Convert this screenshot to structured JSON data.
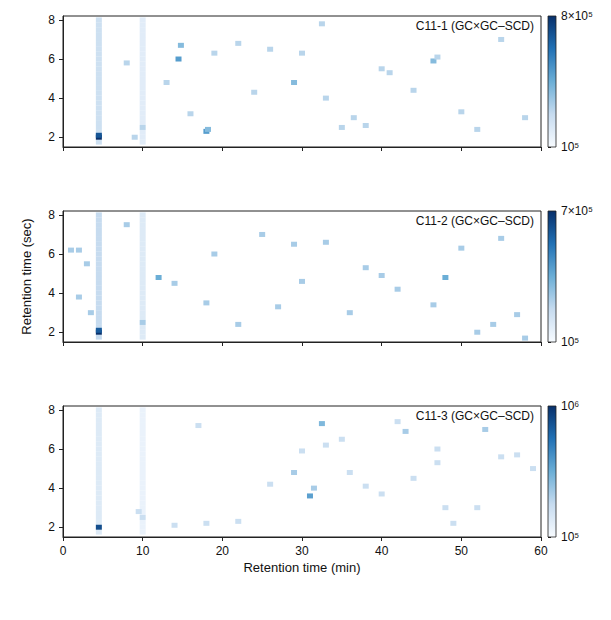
{
  "chart_data": [
    {
      "type": "heatmap",
      "title": "C11-1 (GC×GC–SCD)",
      "xlim": [
        0,
        60
      ],
      "xticks": [
        0,
        10,
        20,
        30,
        40,
        50,
        60
      ],
      "ylim": [
        1.5,
        8.2
      ],
      "yticks": [
        2,
        4,
        6,
        8
      ],
      "tick_labels": "y",
      "colorbar": {
        "range": [
          100000,
          800000
        ],
        "ticks": [
          {
            "value": 100000,
            "label": "10⁵"
          },
          {
            "value": 800000,
            "label": "8×10⁵"
          }
        ]
      },
      "cells": [
        [
          4.5,
          1.75,
          250000
        ],
        [
          4.5,
          2.25,
          250000
        ],
        [
          4.5,
          2.5,
          250000
        ],
        [
          4.5,
          2.75,
          250000
        ],
        [
          4.5,
          3,
          250000
        ],
        [
          4.5,
          3.25,
          250000
        ],
        [
          4.5,
          3.5,
          250000
        ],
        [
          4.5,
          3.75,
          250000
        ],
        [
          4.5,
          4,
          250000
        ],
        [
          4.5,
          4.25,
          250000
        ],
        [
          4.5,
          4.5,
          250000
        ],
        [
          4.5,
          4.75,
          250000
        ],
        [
          4.5,
          5,
          250000
        ],
        [
          4.5,
          5.25,
          250000
        ],
        [
          4.5,
          5.5,
          250000
        ],
        [
          4.5,
          5.75,
          250000
        ],
        [
          4.5,
          6,
          250000
        ],
        [
          4.5,
          6.25,
          250000
        ],
        [
          4.5,
          6.5,
          250000
        ],
        [
          4.5,
          6.75,
          250000
        ],
        [
          4.5,
          7,
          250000
        ],
        [
          4.5,
          7.25,
          250000
        ],
        [
          4.5,
          7.5,
          250000
        ],
        [
          4.5,
          7.75,
          250000
        ],
        [
          4.5,
          8,
          250000
        ],
        [
          10,
          1.75,
          180000
        ],
        [
          10,
          2,
          180000
        ],
        [
          10,
          2.25,
          180000
        ],
        [
          10,
          2.75,
          180000
        ],
        [
          10,
          3,
          180000
        ],
        [
          10,
          3.25,
          180000
        ],
        [
          10,
          3.5,
          180000
        ],
        [
          10,
          3.75,
          180000
        ],
        [
          10,
          4,
          180000
        ],
        [
          10,
          4.25,
          180000
        ],
        [
          10,
          4.5,
          180000
        ],
        [
          10,
          4.75,
          180000
        ],
        [
          10,
          5,
          180000
        ],
        [
          10,
          5.25,
          180000
        ],
        [
          10,
          5.5,
          180000
        ],
        [
          10,
          5.75,
          180000
        ],
        [
          10,
          6,
          180000
        ],
        [
          10,
          6.25,
          180000
        ],
        [
          10,
          6.5,
          180000
        ],
        [
          10,
          6.75,
          180000
        ],
        [
          10,
          7,
          180000
        ],
        [
          10,
          7.25,
          180000
        ],
        [
          10,
          7.5,
          180000
        ],
        [
          10,
          7.75,
          180000
        ],
        [
          10,
          8,
          180000
        ],
        [
          4.5,
          2.0,
          800000
        ],
        [
          4.5,
          2.1,
          700000
        ],
        [
          10,
          2.5,
          300000
        ],
        [
          14.5,
          6.0,
          500000
        ],
        [
          14.8,
          6.7,
          400000
        ],
        [
          18,
          2.3,
          500000
        ],
        [
          18.2,
          2.4,
          400000
        ],
        [
          19,
          6.3,
          300000
        ],
        [
          22,
          6.8,
          300000
        ],
        [
          24,
          4.3,
          300000
        ],
        [
          29,
          4.8,
          400000
        ],
        [
          30,
          6.3,
          300000
        ],
        [
          32.5,
          7.8,
          300000
        ],
        [
          33,
          4.0,
          300000
        ],
        [
          35,
          2.5,
          300000
        ],
        [
          36.5,
          3.0,
          300000
        ],
        [
          38,
          2.6,
          300000
        ],
        [
          40,
          5.5,
          300000
        ],
        [
          41,
          5.3,
          300000
        ],
        [
          44,
          4.4,
          300000
        ],
        [
          46.5,
          5.9,
          400000
        ],
        [
          47,
          6.1,
          300000
        ],
        [
          52,
          2.4,
          300000
        ],
        [
          55,
          7.0,
          300000
        ],
        [
          58,
          3.0,
          300000
        ],
        [
          8,
          5.8,
          300000
        ],
        [
          9,
          2.0,
          300000
        ],
        [
          13,
          4.8,
          300000
        ],
        [
          16,
          3.2,
          300000
        ],
        [
          26,
          6.5,
          300000
        ],
        [
          50,
          3.3,
          300000
        ]
      ]
    },
    {
      "type": "heatmap",
      "title": "C11-2 (GC×GC–SCD)",
      "ylabel": "Retention time (sec)",
      "xlim": [
        0,
        60
      ],
      "xticks": [
        0,
        10,
        20,
        30,
        40,
        50,
        60
      ],
      "ylim": [
        1.5,
        8.2
      ],
      "yticks": [
        2,
        4,
        6,
        8
      ],
      "tick_labels": "y",
      "colorbar": {
        "range": [
          100000,
          700000
        ],
        "ticks": [
          {
            "value": 100000,
            "label": "10⁵"
          },
          {
            "value": 700000,
            "label": "7×10⁵"
          }
        ]
      },
      "cells": [
        [
          4.5,
          1.75,
          250000
        ],
        [
          4.5,
          2.25,
          250000
        ],
        [
          4.5,
          2.5,
          250000
        ],
        [
          4.5,
          2.75,
          250000
        ],
        [
          4.5,
          3,
          250000
        ],
        [
          4.5,
          3.25,
          250000
        ],
        [
          4.5,
          3.5,
          250000
        ],
        [
          4.5,
          3.75,
          250000
        ],
        [
          4.5,
          4,
          250000
        ],
        [
          4.5,
          4.25,
          250000
        ],
        [
          4.5,
          4.5,
          250000
        ],
        [
          4.5,
          4.75,
          250000
        ],
        [
          4.5,
          5,
          250000
        ],
        [
          4.5,
          5.25,
          250000
        ],
        [
          4.5,
          5.5,
          250000
        ],
        [
          4.5,
          5.75,
          250000
        ],
        [
          4.5,
          6,
          250000
        ],
        [
          4.5,
          6.25,
          250000
        ],
        [
          4.5,
          6.5,
          250000
        ],
        [
          4.5,
          6.75,
          250000
        ],
        [
          4.5,
          7,
          250000
        ],
        [
          4.5,
          7.25,
          250000
        ],
        [
          4.5,
          7.5,
          250000
        ],
        [
          4.5,
          7.75,
          250000
        ],
        [
          4.5,
          8,
          250000
        ],
        [
          10,
          1.75,
          180000
        ],
        [
          10,
          2,
          180000
        ],
        [
          10,
          2.25,
          180000
        ],
        [
          10,
          2.75,
          180000
        ],
        [
          10,
          3,
          180000
        ],
        [
          10,
          3.25,
          180000
        ],
        [
          10,
          3.5,
          180000
        ],
        [
          10,
          3.75,
          180000
        ],
        [
          10,
          4,
          180000
        ],
        [
          10,
          4.25,
          180000
        ],
        [
          10,
          4.5,
          180000
        ],
        [
          10,
          4.75,
          180000
        ],
        [
          10,
          5,
          180000
        ],
        [
          10,
          5.25,
          180000
        ],
        [
          10,
          5.5,
          180000
        ],
        [
          10,
          5.75,
          180000
        ],
        [
          10,
          6,
          180000
        ],
        [
          10,
          6.25,
          180000
        ],
        [
          10,
          6.5,
          180000
        ],
        [
          10,
          6.75,
          180000
        ],
        [
          10,
          7,
          180000
        ],
        [
          10,
          7.25,
          180000
        ],
        [
          10,
          7.5,
          180000
        ],
        [
          10,
          7.75,
          180000
        ],
        [
          10,
          8,
          180000
        ],
        [
          4.5,
          2.0,
          700000
        ],
        [
          4.5,
          2.1,
          600000
        ],
        [
          10,
          2.5,
          300000
        ],
        [
          1,
          6.2,
          300000
        ],
        [
          2,
          6.2,
          300000
        ],
        [
          3,
          5.5,
          300000
        ],
        [
          2,
          3.8,
          300000
        ],
        [
          3.5,
          3.0,
          300000
        ],
        [
          8,
          7.5,
          300000
        ],
        [
          12,
          4.8,
          400000
        ],
        [
          14,
          4.5,
          300000
        ],
        [
          19,
          6.0,
          300000
        ],
        [
          18,
          3.5,
          300000
        ],
        [
          25,
          7.0,
          300000
        ],
        [
          27,
          3.3,
          300000
        ],
        [
          29,
          6.5,
          300000
        ],
        [
          30,
          4.6,
          300000
        ],
        [
          33,
          6.6,
          300000
        ],
        [
          38,
          5.3,
          300000
        ],
        [
          40,
          4.9,
          300000
        ],
        [
          42,
          4.2,
          300000
        ],
        [
          46.5,
          3.4,
          300000
        ],
        [
          48,
          4.8,
          400000
        ],
        [
          52,
          2.0,
          300000
        ],
        [
          54,
          2.4,
          300000
        ],
        [
          55,
          6.8,
          300000
        ],
        [
          57,
          2.9,
          300000
        ],
        [
          58,
          1.7,
          300000
        ],
        [
          50,
          6.3,
          300000
        ],
        [
          36,
          3.0,
          300000
        ],
        [
          22,
          2.4,
          300000
        ]
      ]
    },
    {
      "type": "heatmap",
      "title": "C11-3 (GC×GC–SCD)",
      "xlabel": "Retention time (min)",
      "xlim": [
        0,
        60
      ],
      "xticks": [
        0,
        10,
        20,
        30,
        40,
        50,
        60
      ],
      "ylim": [
        1.5,
        8.2
      ],
      "yticks": [
        2,
        4,
        6,
        8
      ],
      "tick_labels": true,
      "colorbar": {
        "range": [
          100000,
          1000000
        ],
        "ticks": [
          {
            "value": 100000,
            "label": "10⁵"
          },
          {
            "value": 1000000,
            "label": "10⁶"
          }
        ]
      },
      "cells": [
        [
          4.5,
          1.75,
          220000
        ],
        [
          4.5,
          2.25,
          220000
        ],
        [
          4.5,
          2.5,
          220000
        ],
        [
          4.5,
          2.75,
          220000
        ],
        [
          4.5,
          3,
          220000
        ],
        [
          4.5,
          3.25,
          220000
        ],
        [
          4.5,
          3.5,
          220000
        ],
        [
          4.5,
          3.75,
          220000
        ],
        [
          4.5,
          4,
          220000
        ],
        [
          4.5,
          4.25,
          220000
        ],
        [
          4.5,
          4.5,
          220000
        ],
        [
          4.5,
          4.75,
          220000
        ],
        [
          4.5,
          5,
          220000
        ],
        [
          4.5,
          5.25,
          220000
        ],
        [
          4.5,
          5.5,
          220000
        ],
        [
          4.5,
          5.75,
          220000
        ],
        [
          4.5,
          6,
          220000
        ],
        [
          4.5,
          6.25,
          220000
        ],
        [
          4.5,
          6.5,
          220000
        ],
        [
          4.5,
          6.75,
          220000
        ],
        [
          4.5,
          7,
          220000
        ],
        [
          4.5,
          7.25,
          220000
        ],
        [
          4.5,
          7.5,
          220000
        ],
        [
          4.5,
          7.75,
          220000
        ],
        [
          4.5,
          8,
          220000
        ],
        [
          10,
          1.75,
          160000
        ],
        [
          10,
          2,
          160000
        ],
        [
          10,
          2.25,
          160000
        ],
        [
          10,
          2.75,
          160000
        ],
        [
          10,
          3,
          160000
        ],
        [
          10,
          3.25,
          160000
        ],
        [
          10,
          3.5,
          160000
        ],
        [
          10,
          3.75,
          160000
        ],
        [
          10,
          4,
          160000
        ],
        [
          10,
          4.25,
          160000
        ],
        [
          10,
          4.5,
          160000
        ],
        [
          10,
          4.75,
          160000
        ],
        [
          10,
          5,
          160000
        ],
        [
          10,
          5.25,
          160000
        ],
        [
          10,
          5.5,
          160000
        ],
        [
          10,
          5.75,
          160000
        ],
        [
          10,
          6,
          160000
        ],
        [
          10,
          6.25,
          160000
        ],
        [
          10,
          6.5,
          160000
        ],
        [
          10,
          6.75,
          160000
        ],
        [
          10,
          7,
          160000
        ],
        [
          10,
          7.25,
          160000
        ],
        [
          10,
          7.5,
          160000
        ],
        [
          10,
          7.75,
          160000
        ],
        [
          10,
          8,
          160000
        ],
        [
          4.5,
          2.0,
          900000
        ],
        [
          10,
          2.5,
          300000
        ],
        [
          9.5,
          2.8,
          300000
        ],
        [
          17,
          7.2,
          300000
        ],
        [
          18,
          2.2,
          300000
        ],
        [
          22,
          2.3,
          300000
        ],
        [
          29,
          4.8,
          400000
        ],
        [
          30,
          5.9,
          300000
        ],
        [
          31,
          3.6,
          600000
        ],
        [
          31.5,
          4.0,
          400000
        ],
        [
          32.5,
          7.3,
          500000
        ],
        [
          33,
          6.2,
          300000
        ],
        [
          35,
          6.5,
          300000
        ],
        [
          36,
          4.8,
          300000
        ],
        [
          38,
          4.1,
          300000
        ],
        [
          40,
          3.7,
          300000
        ],
        [
          42,
          7.4,
          300000
        ],
        [
          43,
          6.9,
          400000
        ],
        [
          44,
          4.5,
          300000
        ],
        [
          47,
          5.3,
          300000
        ],
        [
          48,
          3.0,
          300000
        ],
        [
          49,
          2.2,
          300000
        ],
        [
          52,
          3.0,
          300000
        ],
        [
          53,
          7.0,
          400000
        ],
        [
          55,
          5.6,
          300000
        ],
        [
          57,
          5.7,
          300000
        ],
        [
          59,
          5.0,
          300000
        ],
        [
          26,
          4.2,
          300000
        ],
        [
          14,
          2.1,
          300000
        ],
        [
          47,
          6.0,
          300000
        ]
      ]
    }
  ]
}
